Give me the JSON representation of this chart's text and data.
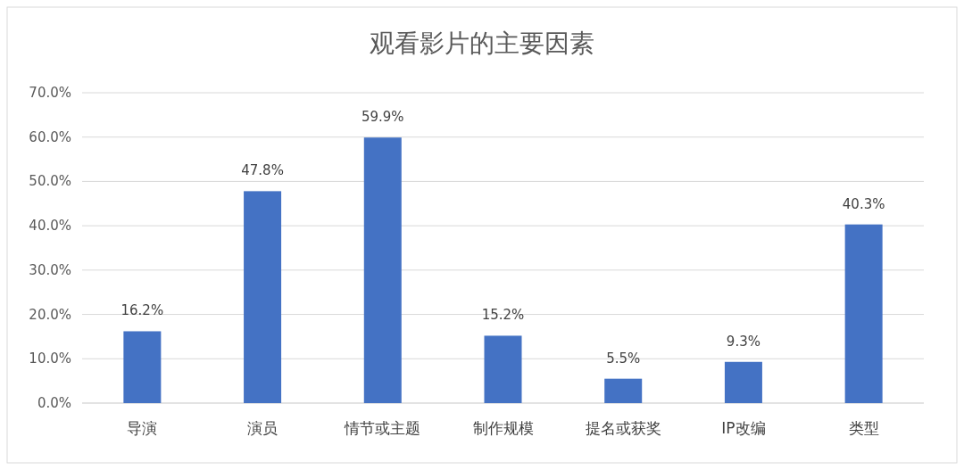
{
  "chart_data": {
    "type": "bar",
    "title": "观看影片的主要因素",
    "categories": [
      "导演",
      "演员",
      "情节或主题",
      "制作规模",
      "提名或获奖",
      "IP改编",
      "类型"
    ],
    "values": [
      16.2,
      47.8,
      59.9,
      15.2,
      5.5,
      9.3,
      40.3
    ],
    "color": "#4472c4",
    "value_labels": [
      "16.2%",
      "47.8%",
      "59.9%",
      "15.2%",
      "5.5%",
      "9.3%",
      "40.3%"
    ],
    "ylim": [
      0,
      70
    ],
    "yticks": [
      {
        "value": 0,
        "label": "0.0%"
      },
      {
        "value": 10,
        "label": "10.0%"
      },
      {
        "value": 20,
        "label": "20.0%"
      },
      {
        "value": 30,
        "label": "30.0%"
      },
      {
        "value": 40,
        "label": "40.0%"
      },
      {
        "value": 50,
        "label": "50.0%"
      },
      {
        "value": 60,
        "label": "60.0%"
      },
      {
        "value": 70,
        "label": "70.0%"
      }
    ],
    "grid": "y"
  }
}
